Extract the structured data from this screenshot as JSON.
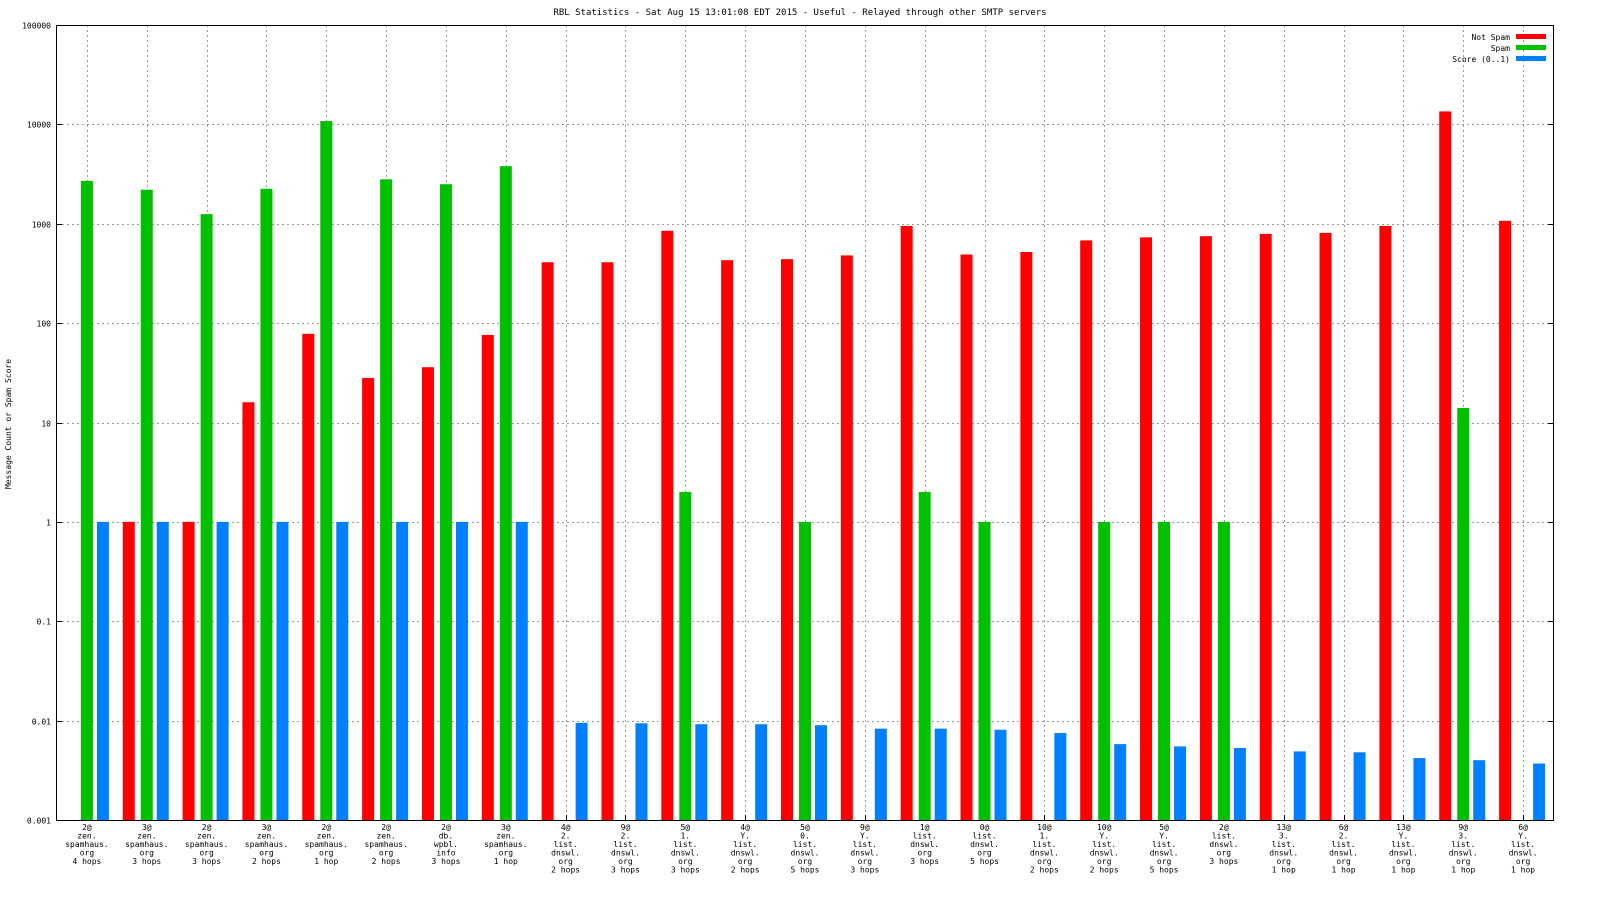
{
  "chart_data": {
    "type": "bar",
    "title": "RBL Statistics - Sat Aug 15 13:01:08 EDT 2015 - Useful - Relayed through other SMTP servers",
    "ylabel": "Message Count or Spam Score",
    "xlabel": "",
    "yscale": "log",
    "ylim": [
      0.001,
      100000
    ],
    "yticks": [
      "0.001",
      "0.01",
      "0.1",
      "1",
      "10",
      "100",
      "1000",
      "10000",
      "100000"
    ],
    "grid": true,
    "legend_position": "top-right",
    "categories": [
      [
        "2@",
        "zen.",
        "spamhaus.",
        "org",
        "4 hops"
      ],
      [
        "3@",
        "zen.",
        "spamhaus.",
        "org",
        "3 hops"
      ],
      [
        "2@",
        "zen.",
        "spamhaus.",
        "org",
        "3 hops"
      ],
      [
        "3@",
        "zen.",
        "spamhaus.",
        "org",
        "2 hops"
      ],
      [
        "2@",
        "zen.",
        "spamhaus.",
        "org",
        "1 hop"
      ],
      [
        "2@",
        "zen.",
        "spamhaus.",
        "org",
        "2 hops"
      ],
      [
        "2@",
        "db.",
        "wpbl.",
        "info",
        "3 hops"
      ],
      [
        "3@",
        "zen.",
        "spamhaus.",
        "org",
        "1 hop"
      ],
      [
        "4@",
        "2.",
        "list.",
        "dnswl.",
        "org",
        "2 hops"
      ],
      [
        "9@",
        "2.",
        "list.",
        "dnswl.",
        "org",
        "3 hops"
      ],
      [
        "5@",
        "1.",
        "list.",
        "dnswl.",
        "org",
        "3 hops"
      ],
      [
        "4@",
        "Y.",
        "list.",
        "dnswl.",
        "org",
        "2 hops"
      ],
      [
        "5@",
        "0.",
        "list.",
        "dnswl.",
        "org",
        "5 hops"
      ],
      [
        "9@",
        "Y.",
        "list.",
        "dnswl.",
        "org",
        "3 hops"
      ],
      [
        "1@",
        "list.",
        "dnswl.",
        "org",
        "3 hops"
      ],
      [
        "0@",
        "list.",
        "dnswl.",
        "org",
        "5 hops"
      ],
      [
        "10@",
        "1.",
        "list.",
        "dnswl.",
        "org",
        "2 hops"
      ],
      [
        "10@",
        "Y.",
        "list.",
        "dnswl.",
        "org",
        "2 hops"
      ],
      [
        "5@",
        "Y.",
        "list.",
        "dnswl.",
        "org",
        "5 hops"
      ],
      [
        "2@",
        "list.",
        "dnswl.",
        "org",
        "3 hops"
      ],
      [
        "13@",
        "3.",
        "list.",
        "dnswl.",
        "org",
        "1 hop"
      ],
      [
        "6@",
        "2.",
        "list.",
        "dnswl.",
        "org",
        "1 hop"
      ],
      [
        "13@",
        "Y.",
        "list.",
        "dnswl.",
        "org",
        "1 hop"
      ],
      [
        "9@",
        "3.",
        "list.",
        "dnswl.",
        "org",
        "1 hop"
      ],
      [
        "6@",
        "Y.",
        "list.",
        "dnswl.",
        "org",
        "1 hop"
      ]
    ],
    "series": [
      {
        "name": "Not Spam",
        "color": "#ff0000",
        "values": [
          0,
          1,
          1,
          16,
          78,
          28,
          36,
          76,
          410,
          410,
          850,
          430,
          440,
          480,
          950,
          490,
          520,
          680,
          730,
          750,
          790,
          810,
          950,
          13500,
          1070
        ]
      },
      {
        "name": "Spam",
        "color": "#00c000",
        "values": [
          2700,
          2200,
          1250,
          2250,
          10800,
          2800,
          2500,
          3800,
          0,
          0,
          2,
          0,
          1,
          0,
          2,
          1,
          0,
          1,
          1,
          1,
          0,
          0,
          0,
          14,
          0
        ]
      },
      {
        "name": "Score (0..1)",
        "color": "#0080ff",
        "values": [
          1,
          1,
          1,
          1,
          1,
          1,
          1,
          1,
          0.0095,
          0.0094,
          0.0092,
          0.0092,
          0.009,
          0.0083,
          0.0083,
          0.0081,
          0.0075,
          0.0058,
          0.0055,
          0.0053,
          0.0049,
          0.0048,
          0.0042,
          0.004,
          0.0037
        ]
      }
    ]
  }
}
